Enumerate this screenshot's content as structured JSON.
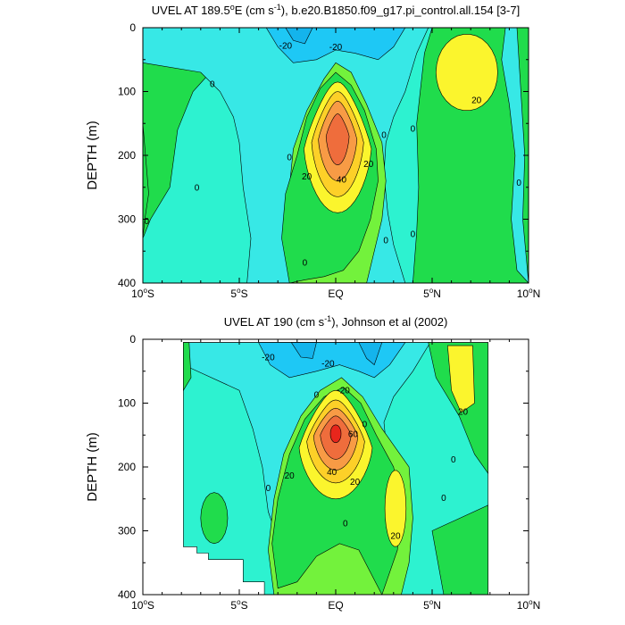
{
  "chart_data": [
    {
      "type": "contour",
      "title_parts": [
        "UVEL AT 189.5",
        "o",
        "E (cm s",
        "-1",
        "), b.e20.B1850.f09_g17.pi_control.all.154 [3-7]"
      ],
      "ylabel": "DEPTH (m)",
      "xlim": [
        -10,
        10
      ],
      "ylim": [
        400,
        0
      ],
      "y_ticks": [
        "0",
        "100",
        "200",
        "300",
        "400"
      ],
      "x_ticks": [
        {
          "value": -10,
          "label": "10",
          "sup": "o",
          "hemi": "S"
        },
        {
          "value": -5,
          "label": "5",
          "sup": "o",
          "hemi": "S"
        },
        {
          "value": 0,
          "label": "EQ",
          "sup": "",
          "hemi": ""
        },
        {
          "value": 5,
          "label": "5",
          "sup": "o",
          "hemi": "N"
        },
        {
          "value": 10,
          "label": "10",
          "sup": "o",
          "hemi": "N"
        }
      ],
      "contour_labels": [
        {
          "text": "-20",
          "x": -2.6,
          "y": 28
        },
        {
          "text": "-20",
          "x": -0.0,
          "y": 30
        },
        {
          "text": "0",
          "x": -6.4,
          "y": 88
        },
        {
          "text": "0",
          "x": -7.2,
          "y": 250
        },
        {
          "text": "0",
          "x": -9.8,
          "y": 303
        },
        {
          "text": "0",
          "x": -2.4,
          "y": 203
        },
        {
          "text": "0",
          "x": 2.5,
          "y": 168
        },
        {
          "text": "0",
          "x": 4.0,
          "y": 158
        },
        {
          "text": "0",
          "x": 4.0,
          "y": 323
        },
        {
          "text": "0",
          "x": 2.6,
          "y": 333
        },
        {
          "text": "0",
          "x": -1.6,
          "y": 368
        },
        {
          "text": "0",
          "x": 9.5,
          "y": 243
        },
        {
          "text": "20",
          "x": -1.5,
          "y": 233
        },
        {
          "text": "20",
          "x": 1.7,
          "y": 213
        },
        {
          "text": "20",
          "x": 7.3,
          "y": 113
        },
        {
          "text": "40",
          "x": 0.3,
          "y": 238
        }
      ]
    },
    {
      "type": "contour",
      "title_parts": [
        "UVEL AT 190 (cm s",
        "-1",
        "), Johnson et al (2002)"
      ],
      "ylabel": "DEPTH (m)",
      "xlim": [
        -10,
        10
      ],
      "ylim": [
        400,
        0
      ],
      "y_ticks": [
        "0",
        "100",
        "200",
        "300",
        "400"
      ],
      "x_ticks": [
        {
          "value": -10,
          "label": "10",
          "sup": "o",
          "hemi": "S"
        },
        {
          "value": -5,
          "label": "5",
          "sup": "o",
          "hemi": "S"
        },
        {
          "value": 0,
          "label": "EQ",
          "sup": "",
          "hemi": ""
        },
        {
          "value": 5,
          "label": "5",
          "sup": "o",
          "hemi": "N"
        },
        {
          "value": 10,
          "label": "10",
          "sup": "o",
          "hemi": "N"
        }
      ],
      "contour_labels": [
        {
          "text": "-20",
          "x": -3.5,
          "y": 28
        },
        {
          "text": "-20",
          "x": -0.4,
          "y": 38
        },
        {
          "text": "-20",
          "x": 0.4,
          "y": 80
        },
        {
          "text": "0",
          "x": -1.0,
          "y": 87
        },
        {
          "text": "0",
          "x": 1.5,
          "y": 133
        },
        {
          "text": "0",
          "x": -3.5,
          "y": 233
        },
        {
          "text": "0",
          "x": 6.1,
          "y": 188
        },
        {
          "text": "0",
          "x": 5.6,
          "y": 248
        },
        {
          "text": "0",
          "x": 0.5,
          "y": 288
        },
        {
          "text": "20",
          "x": -2.4,
          "y": 213
        },
        {
          "text": "20",
          "x": 1.0,
          "y": 223
        },
        {
          "text": "20",
          "x": 3.1,
          "y": 308
        },
        {
          "text": "20",
          "x": 6.6,
          "y": 113
        },
        {
          "text": "40",
          "x": -0.2,
          "y": 208
        },
        {
          "text": "60",
          "x": 0.9,
          "y": 148
        }
      ]
    }
  ]
}
